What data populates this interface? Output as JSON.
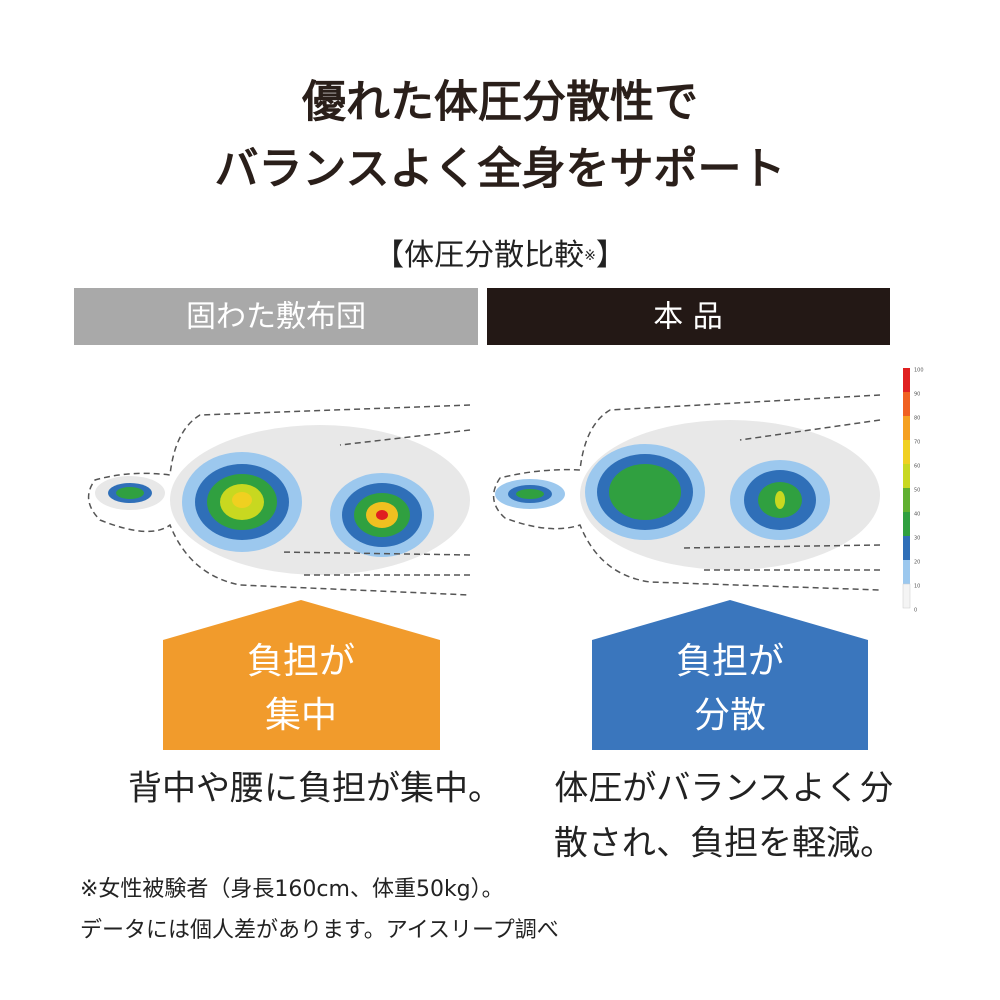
{
  "header": {
    "title_lines": [
      "優れた体圧分散性で",
      "バランスよく全身をサポート"
    ],
    "subtitle_open": "【体圧分散比較",
    "subtitle_mark": "※",
    "subtitle_close": "】"
  },
  "comparison": {
    "left": {
      "label": "固わた敷布団",
      "badge_lines": [
        "負担が",
        "集中"
      ],
      "caption_lines": [
        "背中や腰に負担が集中。"
      ]
    },
    "right": {
      "label": "本 品",
      "badge_lines": [
        "負担が",
        "分散"
      ],
      "caption_lines": [
        "体圧がバランスよく分",
        "散され、負担を軽減。"
      ]
    }
  },
  "scale": {
    "labels": [
      100,
      90,
      80,
      70,
      60,
      50,
      40,
      30,
      20,
      10,
      0
    ]
  },
  "footnote_lines": [
    "※女性被験者（身長160cm、体重50kg）。",
    "データには個人差があります。アイスリープ調べ"
  ]
}
